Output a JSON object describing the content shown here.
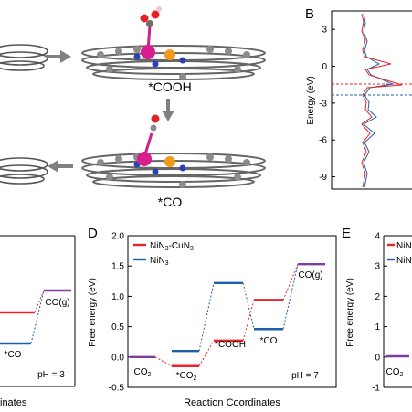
{
  "panels": {
    "a": {
      "intermediate_top": "*COOH",
      "intermediate_bottom": "*CO"
    },
    "b": {
      "letter": "B",
      "ylabel": "Energy (eV)",
      "yticks": [
        "3",
        "0",
        "-3",
        "-6",
        "-9"
      ],
      "colors": {
        "red": "#e8262a",
        "blue": "#1f5fa8"
      }
    },
    "left_partial": {
      "labels": [
        "CO(g)",
        "*CO",
        "pH = 3"
      ],
      "xlabel_fragment": "inates"
    },
    "d": {
      "letter": "D",
      "ylabel": "Free energy (eV)",
      "xlabel": "Reaction Coordinates",
      "ph": "pH = 7",
      "legend": [
        {
          "name": "NiN3-CuN3",
          "base": "NiN",
          "s1": "3",
          "mid": "-CuN",
          "s2": "3",
          "color": "#e8262a"
        },
        {
          "name": "NiN3",
          "base": "NiN",
          "s1": "3",
          "mid": "",
          "s2": "",
          "color": "#1f5fa8"
        }
      ],
      "labels": {
        "co2": "CO",
        "co2_sub": "2",
        "star_co2": "*CO",
        "star_co2_sub": "2",
        "cooh": "*COOH",
        "co": "*CO",
        "cog": "CO(g)"
      }
    },
    "e": {
      "letter": "E",
      "ylabel": "Free energy (eV)",
      "yticks": [
        "4",
        "3",
        "2",
        "1",
        "0",
        "-1"
      ],
      "legend": [
        "NiN",
        "NiN"
      ],
      "co2": "CO",
      "co2_sub": "2"
    }
  },
  "chart_data": [
    {
      "type": "line",
      "panel": "D",
      "xlabel": "Reaction Coordinates",
      "ylabel": "Free energy (eV)",
      "ylim": [
        -0.5,
        2.0
      ],
      "yticks": [
        "2.0",
        "1.5",
        "1.0",
        "0.5",
        "0.0",
        "-0.5"
      ],
      "steps": [
        "CO2",
        "*CO2",
        "*COOH",
        "*CO",
        "CO(g)"
      ],
      "series": [
        {
          "name": "NiN3-CuN3",
          "color": "#e8262a",
          "values": [
            0.0,
            -0.15,
            0.27,
            0.94,
            1.53
          ]
        },
        {
          "name": "NiN3",
          "color": "#1f5fa8",
          "values": [
            0.0,
            0.1,
            1.22,
            0.46,
            1.53
          ]
        }
      ]
    },
    {
      "type": "line",
      "panel": "B",
      "ylabel": "Energy (eV)",
      "ylim": [
        -10,
        4.5
      ],
      "dashed_levels": [
        {
          "color": "#e8262a",
          "value": -1.6
        },
        {
          "color": "#1f5fa8",
          "value": -2.2
        }
      ]
    }
  ]
}
